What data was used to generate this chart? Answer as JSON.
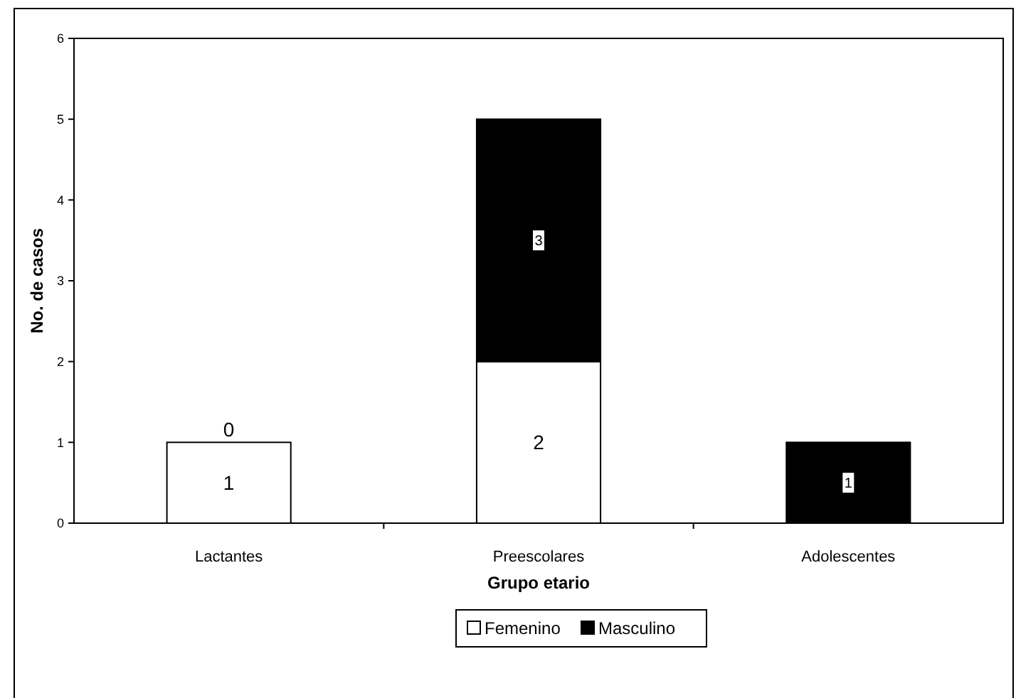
{
  "chart_data": {
    "type": "bar",
    "stacked": true,
    "xlabel": "Grupo etario",
    "ylabel": "No. de casos",
    "categories": [
      "Lactantes",
      "Preescolares",
      "Adolescentes"
    ],
    "series": [
      {
        "name": "Femenino",
        "color": "#ffffff",
        "values": [
          1,
          2,
          0
        ],
        "value_labels": [
          "1",
          "2",
          null
        ]
      },
      {
        "name": "Masculino",
        "color": "#000000",
        "values": [
          0,
          3,
          1
        ],
        "value_labels": [
          "0",
          "3",
          "1"
        ]
      }
    ],
    "ylim": [
      0,
      6
    ],
    "yticks": [
      0,
      1,
      2,
      3,
      4,
      5,
      6
    ],
    "legend": "bottom",
    "grid": false
  }
}
